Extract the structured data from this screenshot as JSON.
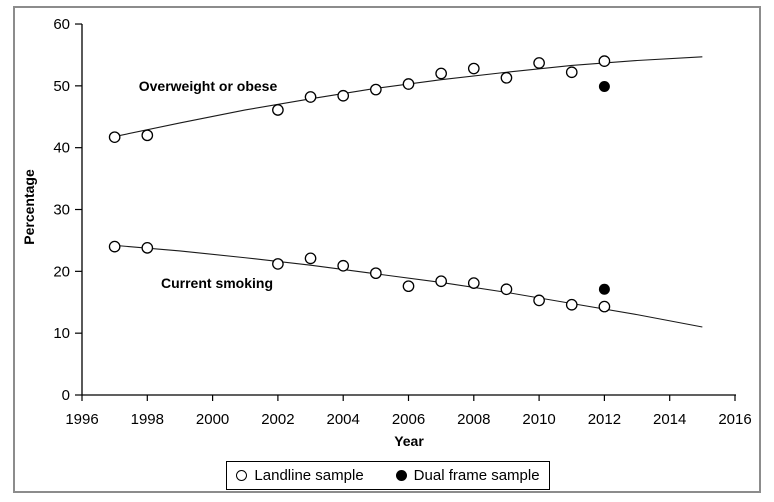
{
  "figure": {
    "border_color": "#8c8c8c",
    "background": "#ffffff",
    "line_color": "#1a1a1a"
  },
  "chart_data": {
    "type": "scatter",
    "title": "",
    "xlabel": "Year",
    "ylabel": "Percentage",
    "xlim": [
      1996,
      2016
    ],
    "ylim": [
      0,
      60
    ],
    "x_ticks": [
      1996,
      1998,
      2000,
      2002,
      2004,
      2006,
      2008,
      2010,
      2012,
      2014,
      2016
    ],
    "y_ticks": [
      0,
      10,
      20,
      30,
      40,
      50,
      60
    ],
    "grid": false,
    "legend_position": "bottom-center",
    "annotations": [
      {
        "text": "Overweight or obese"
      },
      {
        "text": "Current smoking"
      }
    ],
    "series": [
      {
        "name": "Overweight or obese - Landline sample",
        "marker": "open-circle",
        "points": [
          [
            1997,
            41.7
          ],
          [
            1998,
            42.0
          ],
          [
            2002,
            46.1
          ],
          [
            2003,
            48.2
          ],
          [
            2004,
            48.4
          ],
          [
            2005,
            49.4
          ],
          [
            2006,
            50.3
          ],
          [
            2007,
            52.0
          ],
          [
            2008,
            52.8
          ],
          [
            2009,
            51.3
          ],
          [
            2010,
            53.7
          ],
          [
            2011,
            52.2
          ],
          [
            2012,
            54.0
          ]
        ]
      },
      {
        "name": "Overweight or obese - Dual frame sample",
        "marker": "filled-circle",
        "points": [
          [
            2012,
            49.9
          ]
        ]
      },
      {
        "name": "Current smoking - Landline sample",
        "marker": "open-circle",
        "points": [
          [
            1997,
            24.0
          ],
          [
            1998,
            23.8
          ],
          [
            2002,
            21.2
          ],
          [
            2003,
            22.1
          ],
          [
            2004,
            20.9
          ],
          [
            2005,
            19.7
          ],
          [
            2006,
            17.6
          ],
          [
            2007,
            18.4
          ],
          [
            2008,
            18.1
          ],
          [
            2009,
            17.1
          ],
          [
            2010,
            15.3
          ],
          [
            2011,
            14.6
          ],
          [
            2012,
            14.3
          ]
        ]
      },
      {
        "name": "Current smoking - Dual frame sample",
        "marker": "filled-circle",
        "points": [
          [
            2012,
            17.1
          ]
        ]
      }
    ],
    "trend_lines": [
      {
        "for": "Overweight or obese",
        "points": [
          [
            1997,
            41.8
          ],
          [
            1999,
            44.0
          ],
          [
            2001,
            46.1
          ],
          [
            2003,
            47.9
          ],
          [
            2005,
            49.6
          ],
          [
            2007,
            51.0
          ],
          [
            2009,
            52.2
          ],
          [
            2011,
            53.3
          ],
          [
            2013,
            54.1
          ],
          [
            2015,
            54.7
          ]
        ]
      },
      {
        "for": "Current smoking",
        "points": [
          [
            1997,
            24.2
          ],
          [
            1999,
            23.3
          ],
          [
            2001,
            22.2
          ],
          [
            2003,
            21.0
          ],
          [
            2005,
            19.6
          ],
          [
            2007,
            18.2
          ],
          [
            2009,
            16.6
          ],
          [
            2011,
            14.8
          ],
          [
            2013,
            13.0
          ],
          [
            2015,
            11.0
          ]
        ]
      }
    ],
    "legend": [
      {
        "label": "Landline sample",
        "marker": "open-circle"
      },
      {
        "label": "Dual frame sample",
        "marker": "filled-circle"
      }
    ]
  }
}
